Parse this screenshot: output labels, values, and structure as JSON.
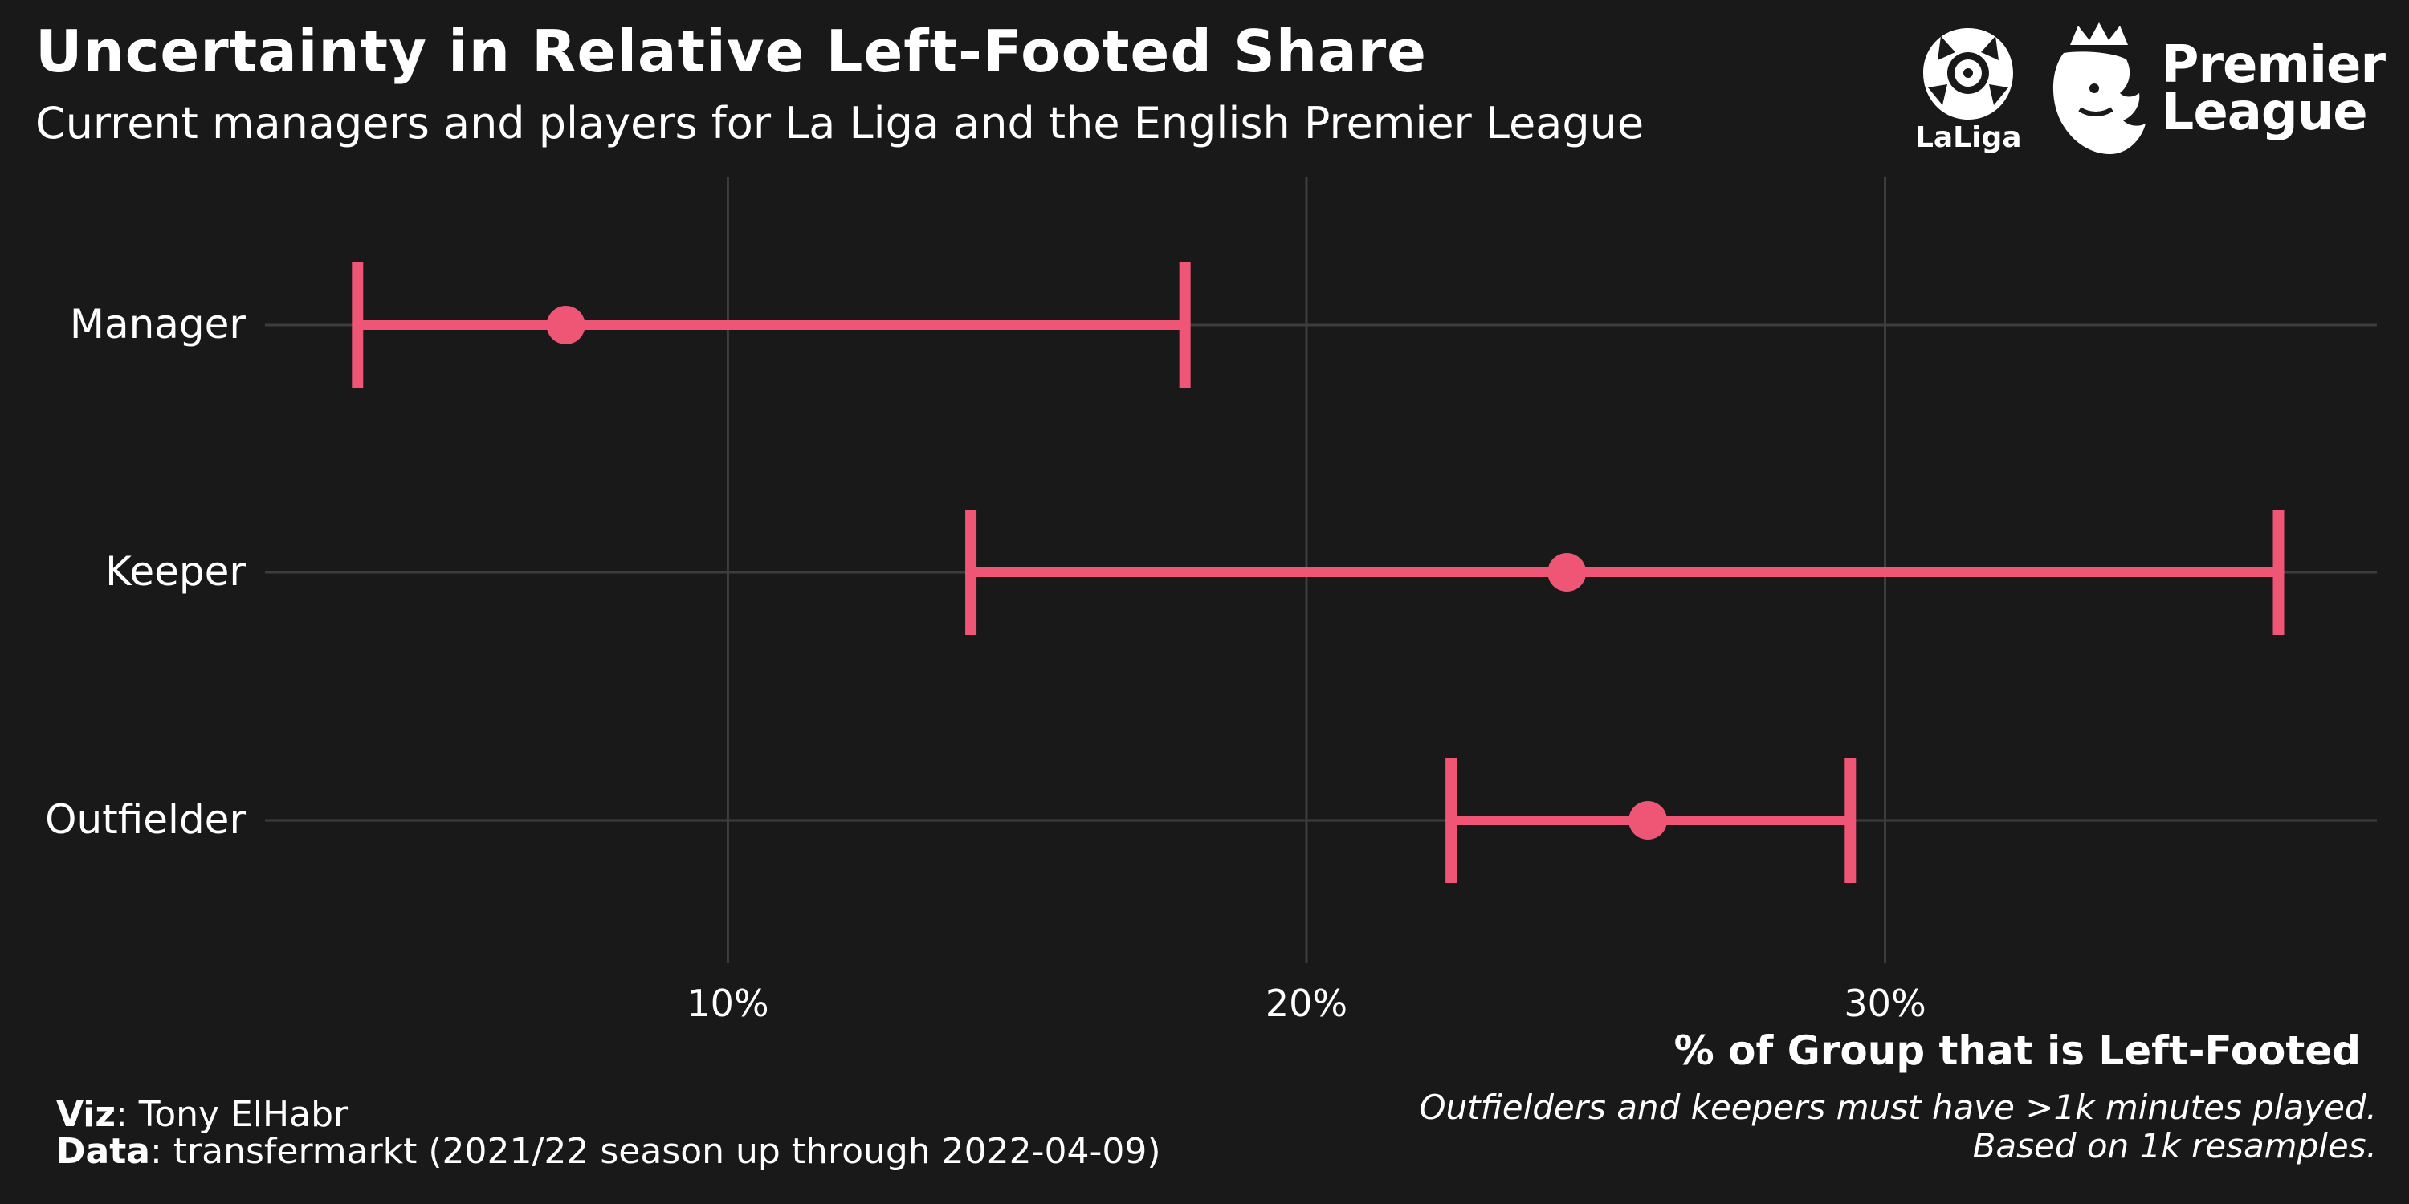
{
  "header": {
    "title": "Uncertainty in Relative Left-Footed Share",
    "subtitle": "Current managers and players for La Liga and the English Premier League"
  },
  "logos": {
    "laliga": "LaLiga",
    "premier_league": [
      "Premier",
      "League"
    ]
  },
  "footer": {
    "viz_label": "Viz",
    "viz_value": ": Tony ElHabr",
    "data_label": "Data",
    "data_value": ": transfermarkt (2021/22 season up through 2022-04-09)",
    "note_line1": "Outfielders and keepers must have >1k minutes played.",
    "note_line2": "Based on 1k resamples."
  },
  "chart_data": {
    "type": "errorbar",
    "title": "Uncertainty in Relative Left-Footed Share",
    "subtitle": "Current managers and players for La Liga and the English Premier League",
    "xlabel": "% of Group that is Left-Footed",
    "ylabel": "",
    "xlim": [
      2,
      38.5
    ],
    "xticks": [
      10,
      20,
      30
    ],
    "xtick_labels": [
      "10%",
      "20%",
      "30%"
    ],
    "grid": true,
    "colors": {
      "background": "#191919",
      "accent": "#ef5675",
      "grid": "#3d3d3d",
      "text": "#ffffff"
    },
    "series": [
      {
        "category": "Manager",
        "estimate": 7.2,
        "lower": 3.6,
        "upper": 17.9
      },
      {
        "category": "Keeper",
        "estimate": 24.5,
        "lower": 14.2,
        "upper": 36.8
      },
      {
        "category": "Outfielder",
        "estimate": 25.9,
        "lower": 22.5,
        "upper": 29.4
      }
    ]
  }
}
